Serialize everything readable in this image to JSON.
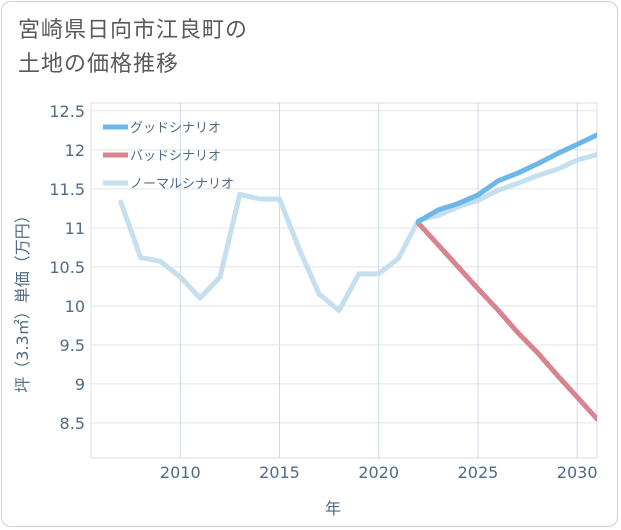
{
  "title_line1": "宮崎県日向市江良町の",
  "title_line2": "土地の価格推移",
  "chart_data": {
    "type": "line",
    "title": "宮崎県日向市江良町の土地の価格推移",
    "xlabel": "年",
    "ylabel": "坪（3.3㎡）単価（万円）",
    "xlim": [
      2005.5,
      2031
    ],
    "ylim": [
      8.05,
      12.6
    ],
    "x_ticks": [
      2010,
      2015,
      2020,
      2025,
      2030
    ],
    "y_ticks": [
      8.5,
      9,
      9.5,
      10,
      10.5,
      11,
      11.5,
      12,
      12.5
    ],
    "series": [
      {
        "name": "グッドシナリオ",
        "color": "#6cb7ea",
        "x": [
          2022,
          2023,
          2024,
          2025,
          2026,
          2027,
          2028,
          2029,
          2030,
          2031
        ],
        "values": [
          11.08,
          11.23,
          11.31,
          11.42,
          11.6,
          11.7,
          11.82,
          11.95,
          12.07,
          12.19
        ]
      },
      {
        "name": "バッドシナリオ",
        "color": "#d9838f",
        "x": [
          2022,
          2023,
          2024,
          2025,
          2026,
          2027,
          2028,
          2029,
          2030,
          2031
        ],
        "values": [
          11.06,
          10.78,
          10.5,
          10.22,
          9.95,
          9.66,
          9.4,
          9.11,
          8.83,
          8.55
        ]
      },
      {
        "name": "ノーマルシナリオ",
        "color": "#c5dfee",
        "x": [
          2007,
          2008,
          2009,
          2010,
          2011,
          2012,
          2013,
          2014,
          2015,
          2016,
          2017,
          2018,
          2019,
          2020,
          2021,
          2022,
          2023,
          2024,
          2025,
          2026,
          2027,
          2028,
          2029,
          2030,
          2031
        ],
        "values": [
          11.33,
          10.62,
          10.57,
          10.37,
          10.1,
          10.37,
          11.43,
          11.37,
          11.37,
          10.72,
          10.15,
          9.94,
          10.41,
          10.41,
          10.61,
          11.1,
          11.16,
          11.27,
          11.35,
          11.48,
          11.57,
          11.67,
          11.75,
          11.87,
          11.94
        ]
      }
    ],
    "legend": "top-left"
  }
}
